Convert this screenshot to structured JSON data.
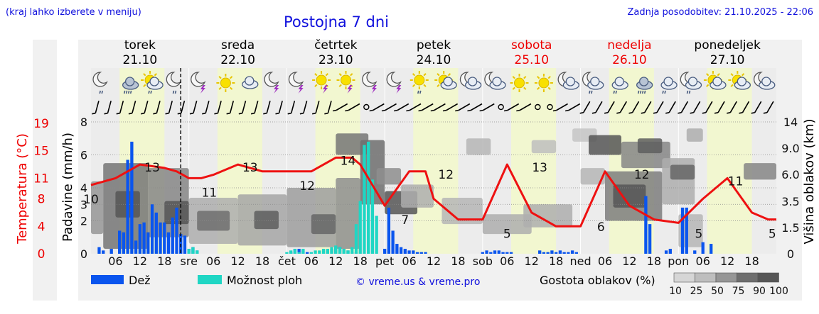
{
  "header": {
    "location_hint": "(kraj lahko izberete v meniju)",
    "station_title": "Postojna 7 dni",
    "last_update": "Zadnja posodobitev: 21.10.2025 - 22:06"
  },
  "colors": {
    "rain": "#0a55ee",
    "shower": "#1fd6c4",
    "temperature": "#ee1111",
    "day_band": "#f2f7d0",
    "red_text": "#ee0000",
    "blue_text": "#1111dd"
  },
  "chart_data": {
    "type": "meteogram",
    "x_unit": "hours from 21.10 00:00",
    "x_range": [
      0,
      168
    ],
    "now_hour": 22,
    "days": [
      {
        "name": "torek",
        "date": "21.10",
        "weekend": false
      },
      {
        "name": "sreda",
        "date": "22.10",
        "weekend": false
      },
      {
        "name": "četrtek",
        "date": "23.10",
        "weekend": false
      },
      {
        "name": "petek",
        "date": "24.10",
        "weekend": false
      },
      {
        "name": "sobota",
        "date": "25.10",
        "weekend": true
      },
      {
        "name": "nedelja",
        "date": "26.10",
        "weekend": true
      },
      {
        "name": "ponedeljek",
        "date": "27.10",
        "weekend": false
      }
    ],
    "day_abbrev": [
      "sre",
      "čet",
      "pet",
      "sob",
      "ned",
      "pon"
    ],
    "hour_ticks": [
      "06",
      "12",
      "18"
    ],
    "icons": [
      "moon-rain",
      "cloud-heavy-rain",
      "sun-cloud-rain",
      "moon-rain",
      "moon-thunder",
      "sun",
      "cloud",
      "moon-thunder",
      "moon-thunder",
      "sun-thunder",
      "sun-thunder",
      "moon-thunder",
      "moon-thunder",
      "sun-rain",
      "sun-cloud",
      "moon-cloud",
      "moon-cloud",
      "sun",
      "sun",
      "moon-cloud",
      "moon-cloud-rain",
      "cloud-rain",
      "cloud-heavy-rain",
      "cloud-rain",
      "moon-cloud-rain",
      "sun-cloud",
      "sun-cloud",
      "moon-cloud"
    ],
    "precip_axis": {
      "label": "Padavine (mm/h)",
      "ticks": [
        0,
        2,
        3,
        4,
        6,
        8
      ],
      "range": [
        0,
        8
      ]
    },
    "temp_axis": {
      "label": "Temperatura (°C)",
      "ticks": [
        0,
        4,
        8,
        11,
        15,
        19
      ]
    },
    "cloud_axis": {
      "label": "Višina oblakov (km)",
      "ticks": [
        0,
        1.5,
        3.5,
        6.0,
        9.0,
        14
      ]
    },
    "temperature": {
      "hours": [
        0,
        6,
        12,
        18,
        21,
        24,
        27,
        30,
        36,
        42,
        48,
        54,
        60,
        64,
        66,
        72,
        78,
        82,
        84,
        90,
        96,
        102,
        108,
        114,
        120,
        126,
        132,
        138,
        144,
        150,
        156,
        162,
        166,
        168
      ],
      "values": [
        10,
        11,
        13,
        12.5,
        12,
        11,
        11,
        11.5,
        13,
        12,
        12,
        12,
        14,
        14,
        13,
        7,
        12,
        12,
        8,
        5,
        5,
        13,
        6,
        4,
        4,
        12,
        7,
        5,
        4.5,
        8,
        11,
        6,
        5,
        5
      ],
      "labels": [
        {
          "hour": 0,
          "value": 10
        },
        {
          "hour": 15,
          "value": 13
        },
        {
          "hour": 29,
          "value": 11
        },
        {
          "hour": 39,
          "value": 13
        },
        {
          "hour": 53,
          "value": 12
        },
        {
          "hour": 63,
          "value": 14
        },
        {
          "hour": 77,
          "value": 7
        },
        {
          "hour": 87,
          "value": 12
        },
        {
          "hour": 102,
          "value": 5
        },
        {
          "hour": 110,
          "value": 13
        },
        {
          "hour": 125,
          "value": 6
        },
        {
          "hour": 135,
          "value": 12
        },
        {
          "hour": 149,
          "value": 5
        },
        {
          "hour": 158,
          "value": 11
        },
        {
          "hour": 167,
          "value": 5
        }
      ]
    },
    "rain": {
      "hours": [
        2,
        3,
        5,
        7,
        8,
        9,
        10,
        11,
        12,
        13,
        14,
        15,
        16,
        17,
        18,
        19,
        20,
        21,
        22,
        23,
        24,
        25,
        26,
        49,
        50,
        51,
        52,
        53,
        58,
        59,
        60,
        61,
        62,
        63,
        64,
        65,
        72,
        73,
        74,
        75,
        76,
        77,
        78,
        79,
        80,
        81,
        82,
        96,
        97,
        98,
        99,
        100,
        101,
        102,
        103,
        110,
        111,
        112,
        113,
        114,
        115,
        116,
        117,
        118,
        119,
        136,
        137,
        141,
        142,
        145,
        146,
        148,
        150,
        152
      ],
      "values": [
        0.4,
        0.2,
        0.3,
        1.4,
        1.3,
        5.7,
        6.8,
        0.8,
        1.8,
        1.9,
        1.3,
        3.0,
        2.5,
        1.9,
        1.9,
        1.3,
        2.2,
        2.8,
        1.2,
        1.1,
        0.3,
        0.4,
        0.2,
        0.1,
        0.3,
        0.3,
        0.2,
        0.1,
        0.2,
        0.3,
        0.4,
        0.4,
        0.3,
        0.2,
        0.1,
        0.1,
        0.3,
        2.8,
        1.4,
        0.6,
        0.4,
        0.3,
        0.2,
        0.2,
        0.1,
        0.1,
        0.1,
        0.1,
        0.2,
        0.1,
        0.2,
        0.2,
        0.1,
        0.1,
        0.1,
        0.2,
        0.1,
        0.1,
        0.2,
        0.1,
        0.2,
        0.1,
        0.1,
        0.2,
        0.1,
        3.5,
        1.8,
        0.2,
        0.3,
        2.8,
        2.8,
        0.2,
        0.7,
        0.6
      ]
    },
    "shower": {
      "hours": [
        24,
        25,
        26,
        48,
        49,
        50,
        51,
        52,
        54,
        55,
        56,
        57,
        58,
        59,
        60,
        61,
        62,
        63,
        64,
        65,
        66,
        67,
        68,
        69,
        70
      ],
      "values": [
        0.3,
        0.4,
        0.2,
        0.1,
        0.2,
        0.3,
        0.1,
        0.3,
        0.1,
        0.2,
        0.2,
        0.3,
        0.3,
        0.4,
        0.5,
        0.4,
        0.3,
        0.2,
        0.4,
        1.8,
        3.2,
        6.6,
        6.8,
        4.5,
        2.3
      ]
    },
    "cloud_blocks": [
      {
        "h0": 0,
        "h1": 3,
        "p0": 1.2,
        "p1": 4.4,
        "d": 50
      },
      {
        "h0": 3,
        "h1": 14,
        "p0": 0.3,
        "p1": 5.5,
        "d": 70
      },
      {
        "h0": 6,
        "h1": 12,
        "p0": 2.2,
        "p1": 3.8,
        "d": 90
      },
      {
        "h0": 14,
        "h1": 24,
        "p0": 1.0,
        "p1": 5.2,
        "d": 60
      },
      {
        "h0": 18,
        "h1": 24,
        "p0": 1.8,
        "p1": 3.2,
        "d": 90
      },
      {
        "h0": 24,
        "h1": 36,
        "p0": 0.6,
        "p1": 3.4,
        "d": 35
      },
      {
        "h0": 26,
        "h1": 34,
        "p0": 1.4,
        "p1": 2.6,
        "d": 75
      },
      {
        "h0": 36,
        "h1": 48,
        "p0": 0.5,
        "p1": 3.6,
        "d": 40
      },
      {
        "h0": 40,
        "h1": 46,
        "p0": 1.5,
        "p1": 2.6,
        "d": 85
      },
      {
        "h0": 48,
        "h1": 60,
        "p0": 0.4,
        "p1": 4.0,
        "d": 45
      },
      {
        "h0": 54,
        "h1": 60,
        "p0": 1.2,
        "p1": 2.4,
        "d": 80
      },
      {
        "h0": 60,
        "h1": 66,
        "p0": 0.3,
        "p1": 4.6,
        "d": 55
      },
      {
        "h0": 60,
        "h1": 68,
        "p0": 6.0,
        "p1": 7.3,
        "d": 70
      },
      {
        "h0": 66,
        "h1": 72,
        "p0": 3.0,
        "p1": 6.9,
        "d": 75
      },
      {
        "h0": 70,
        "h1": 76,
        "p0": 4.2,
        "p1": 5.2,
        "d": 55
      },
      {
        "h0": 72,
        "h1": 80,
        "p0": 2.4,
        "p1": 3.8,
        "d": 90
      },
      {
        "h0": 76,
        "h1": 84,
        "p0": 2.8,
        "p1": 4.2,
        "d": 35
      },
      {
        "h0": 86,
        "h1": 96,
        "p0": 1.8,
        "p1": 3.4,
        "d": 30
      },
      {
        "h0": 92,
        "h1": 98,
        "p0": 6.0,
        "p1": 7.0,
        "d": 30
      },
      {
        "h0": 96,
        "h1": 108,
        "p0": 1.2,
        "p1": 2.4,
        "d": 35
      },
      {
        "h0": 106,
        "h1": 118,
        "p0": 1.6,
        "p1": 3.0,
        "d": 35
      },
      {
        "h0": 108,
        "h1": 114,
        "p0": 6.1,
        "p1": 6.9,
        "d": 25
      },
      {
        "h0": 118,
        "h1": 124,
        "p0": 6.8,
        "p1": 7.6,
        "d": 20
      },
      {
        "h0": 120,
        "h1": 126,
        "p0": 4.2,
        "p1": 5.2,
        "d": 30
      },
      {
        "h0": 122,
        "h1": 130,
        "p0": 6.0,
        "p1": 7.2,
        "d": 90
      },
      {
        "h0": 126,
        "h1": 140,
        "p0": 2.0,
        "p1": 5.0,
        "d": 65
      },
      {
        "h0": 128,
        "h1": 136,
        "p0": 2.8,
        "p1": 4.2,
        "d": 90
      },
      {
        "h0": 130,
        "h1": 142,
        "p0": 5.2,
        "p1": 6.8,
        "d": 60
      },
      {
        "h0": 134,
        "h1": 140,
        "p0": 6.1,
        "p1": 7.0,
        "d": 85
      },
      {
        "h0": 140,
        "h1": 148,
        "p0": 3.0,
        "p1": 5.8,
        "d": 35
      },
      {
        "h0": 142,
        "h1": 148,
        "p0": 4.5,
        "p1": 5.4,
        "d": 80
      },
      {
        "h0": 144,
        "h1": 150,
        "p0": 0.4,
        "p1": 2.4,
        "d": 30
      },
      {
        "h0": 146,
        "h1": 150,
        "p0": 6.8,
        "p1": 7.6,
        "d": 35
      },
      {
        "h0": 160,
        "h1": 168,
        "p0": 4.5,
        "p1": 5.5,
        "d": 60
      }
    ],
    "legend": {
      "rain_label": "Dež",
      "shower_label": "Možnost ploh",
      "copyright": "© vreme.us & vreme.pro",
      "density_label": "Gostota oblakov (%)",
      "density_levels": [
        10,
        25,
        50,
        75,
        90,
        100
      ]
    }
  }
}
